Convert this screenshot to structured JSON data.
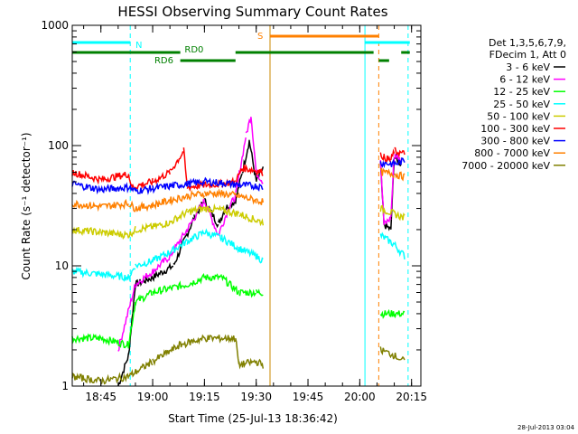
{
  "chart_data": {
    "type": "line",
    "title": "HESSI Observing Summary Count Rates",
    "xlabel": "Start Time (25-Jul-13 18:36:42)",
    "ylabel": "Count Rate (s⁻¹ detector⁻¹)",
    "yscale": "log",
    "ylim": [
      1,
      1000
    ],
    "xlim": [
      "18:36:42",
      "20:17:42"
    ],
    "x_ticks": [
      "18:45",
      "19:00",
      "19:15",
      "19:30",
      "19:45",
      "20:00",
      "20:15"
    ],
    "y_ticks": [
      "1",
      "10",
      "100",
      "1000"
    ],
    "legend_header": [
      "Det 1,3,5,6,7,9,",
      "FDecim 1, Att 0"
    ],
    "legend_position": "right",
    "timestamp": "28-Jul-2013 03:04",
    "attenuator_bars": [
      {
        "label": "N",
        "color": "#00ffff",
        "segments": [
          [
            "18:36:42",
            "18:53:30"
          ],
          [
            "20:01:30",
            "20:14:30"
          ]
        ]
      },
      {
        "label": "S",
        "color": "#ff8000",
        "segments": [
          [
            "19:34:00",
            "20:05:30"
          ]
        ]
      },
      {
        "label": "RD0",
        "color": "#008000",
        "segments": [
          [
            "18:36:42",
            "19:08:00"
          ],
          [
            "19:24:00",
            "20:04:00"
          ],
          [
            "20:12:00",
            "20:14:30"
          ]
        ]
      },
      {
        "label": "RD6",
        "color": "#008000",
        "segments": [
          [
            "19:08:00",
            "19:24:00"
          ],
          [
            "20:05:30",
            "20:08:30"
          ]
        ]
      }
    ],
    "vlines": [
      {
        "time": "18:36:42",
        "color": "#00ffff",
        "dashed": false
      },
      {
        "time": "18:53:30",
        "color": "#00ffff",
        "dashed": true
      },
      {
        "time": "19:34:00",
        "color": "#cc8800",
        "dashed": false
      },
      {
        "time": "20:01:30",
        "color": "#00ffff",
        "dashed": false
      },
      {
        "time": "20:05:30",
        "color": "#ff8000",
        "dashed": true
      },
      {
        "time": "20:14:00",
        "color": "#00ffff",
        "dashed": true
      }
    ],
    "series": [
      {
        "name": "3 - 6 keV",
        "color": "#000000",
        "points": [
          [
            "18:50:00",
            1
          ],
          [
            "18:53:00",
            1.8
          ],
          [
            "18:55:00",
            7
          ],
          [
            "19:00:00",
            8
          ],
          [
            "19:06:00",
            10
          ],
          [
            "19:12:00",
            25
          ],
          [
            "19:15:00",
            35
          ],
          [
            "19:19:00",
            22
          ],
          [
            "19:21:00",
            30
          ],
          [
            "19:24:00",
            35
          ],
          [
            "19:26:00",
            60
          ],
          [
            "19:28:00",
            110
          ],
          [
            "19:30:00",
            50
          ],
          [
            "19:32:00",
            65
          ],
          [
            "20:06:00",
            70
          ],
          [
            "20:07:00",
            22
          ],
          [
            "20:09:00",
            20
          ],
          [
            "20:10:00",
            80
          ],
          [
            "20:12:00",
            70
          ]
        ]
      },
      {
        "name": "6 - 12 keV",
        "color": "#ff00ff",
        "points": [
          [
            "18:50:00",
            2
          ],
          [
            "18:55:00",
            7
          ],
          [
            "19:00:00",
            9
          ],
          [
            "19:05:00",
            12
          ],
          [
            "19:10:00",
            20
          ],
          [
            "19:15:00",
            35
          ],
          [
            "19:19:00",
            18
          ],
          [
            "19:22:00",
            30
          ],
          [
            "19:24:00",
            38
          ],
          [
            "19:27:00",
            120
          ],
          [
            "19:28:30",
            180
          ],
          [
            "19:30:00",
            60
          ],
          [
            "19:32:00",
            50
          ],
          [
            "20:06:00",
            80
          ],
          [
            "20:07:00",
            22
          ],
          [
            "20:09:00",
            25
          ],
          [
            "20:10:00",
            85
          ],
          [
            "20:12:00",
            75
          ]
        ]
      },
      {
        "name": "12 - 25 keV",
        "color": "#00ff00",
        "points": [
          [
            "18:36:42",
            2.5
          ],
          [
            "18:45:00",
            2.5
          ],
          [
            "18:53:00",
            2.2
          ],
          [
            "18:55:00",
            5
          ],
          [
            "19:00:00",
            6
          ],
          [
            "19:10:00",
            7
          ],
          [
            "19:15:00",
            8
          ],
          [
            "19:20:00",
            8
          ],
          [
            "19:25:00",
            6
          ],
          [
            "19:30:00",
            6
          ],
          [
            "19:32:00",
            6
          ],
          [
            "20:06:00",
            4
          ],
          [
            "20:10:00",
            4
          ],
          [
            "20:13:00",
            4
          ]
        ]
      },
      {
        "name": "25 - 50 keV",
        "color": "#00ffff",
        "points": [
          [
            "18:36:42",
            9
          ],
          [
            "18:45:00",
            8.5
          ],
          [
            "18:53:00",
            8
          ],
          [
            "18:55:00",
            10
          ],
          [
            "19:00:00",
            11
          ],
          [
            "19:05:00",
            13
          ],
          [
            "19:10:00",
            16
          ],
          [
            "19:15:00",
            19
          ],
          [
            "19:20:00",
            17
          ],
          [
            "19:25:00",
            14
          ],
          [
            "19:30:00",
            12
          ],
          [
            "19:32:00",
            11
          ],
          [
            "20:06:00",
            18
          ],
          [
            "20:10:00",
            15
          ],
          [
            "20:13:00",
            12
          ]
        ]
      },
      {
        "name": "50 - 100 keV",
        "color": "#cccc00",
        "points": [
          [
            "18:36:42",
            20
          ],
          [
            "18:45:00",
            19
          ],
          [
            "18:53:00",
            18
          ],
          [
            "18:55:00",
            20
          ],
          [
            "19:00:00",
            21
          ],
          [
            "19:05:00",
            23
          ],
          [
            "19:10:00",
            28
          ],
          [
            "19:15:00",
            30
          ],
          [
            "19:20:00",
            29
          ],
          [
            "19:25:00",
            27
          ],
          [
            "19:30:00",
            24
          ],
          [
            "19:32:00",
            23
          ],
          [
            "20:06:00",
            30
          ],
          [
            "20:10:00",
            27
          ],
          [
            "20:13:00",
            25
          ]
        ]
      },
      {
        "name": "100 - 300 keV",
        "color": "#ff0000",
        "points": [
          [
            "18:36:42",
            60
          ],
          [
            "18:45:00",
            52
          ],
          [
            "18:53:00",
            58
          ],
          [
            "18:54:00",
            45
          ],
          [
            "19:00:00",
            50
          ],
          [
            "19:05:00",
            60
          ],
          [
            "19:09:00",
            90
          ],
          [
            "19:10:00",
            45
          ],
          [
            "19:15:00",
            47
          ],
          [
            "19:20:00",
            48
          ],
          [
            "19:24:00",
            50
          ],
          [
            "19:26:00",
            65
          ],
          [
            "19:30:00",
            62
          ],
          [
            "19:32:00",
            60
          ],
          [
            "20:06:00",
            85
          ],
          [
            "20:07:00",
            80
          ],
          [
            "20:09:00",
            75
          ],
          [
            "20:10:00",
            90
          ],
          [
            "20:13:00",
            85
          ]
        ]
      },
      {
        "name": "300 - 800 keV",
        "color": "#0000ff",
        "points": [
          [
            "18:36:42",
            48
          ],
          [
            "18:45:00",
            43
          ],
          [
            "18:53:00",
            45
          ],
          [
            "18:55:00",
            42
          ],
          [
            "19:00:00",
            44
          ],
          [
            "19:05:00",
            46
          ],
          [
            "19:10:00",
            48
          ],
          [
            "19:15:00",
            50
          ],
          [
            "19:20:00",
            49
          ],
          [
            "19:25:00",
            47
          ],
          [
            "19:30:00",
            46
          ],
          [
            "19:32:00",
            45
          ],
          [
            "20:06:00",
            72
          ],
          [
            "20:10:00",
            70
          ],
          [
            "20:13:00",
            75
          ]
        ]
      },
      {
        "name": "800 - 7000 keV",
        "color": "#ff8000",
        "points": [
          [
            "18:36:42",
            33
          ],
          [
            "18:45:00",
            31
          ],
          [
            "18:53:00",
            33
          ],
          [
            "18:55:00",
            30
          ],
          [
            "19:00:00",
            32
          ],
          [
            "19:05:00",
            35
          ],
          [
            "19:10:00",
            38
          ],
          [
            "19:15:00",
            40
          ],
          [
            "19:20:00",
            40
          ],
          [
            "19:25:00",
            38
          ],
          [
            "19:30:00",
            35
          ],
          [
            "19:32:00",
            34
          ],
          [
            "20:06:00",
            60
          ],
          [
            "20:10:00",
            58
          ],
          [
            "20:13:00",
            55
          ]
        ]
      },
      {
        "name": "7000 - 20000 keV",
        "color": "#808000",
        "points": [
          [
            "18:36:42",
            1.2
          ],
          [
            "18:45:00",
            1.1
          ],
          [
            "18:53:00",
            1.2
          ],
          [
            "19:00:00",
            1.6
          ],
          [
            "19:08:00",
            2.2
          ],
          [
            "19:15:00",
            2.5
          ],
          [
            "19:24:00",
            2.5
          ],
          [
            "19:25:00",
            1.5
          ],
          [
            "19:30:00",
            1.6
          ],
          [
            "19:32:00",
            1.5
          ],
          [
            "20:06:00",
            2
          ],
          [
            "20:10:00",
            1.8
          ],
          [
            "20:13:00",
            1.6
          ]
        ]
      }
    ]
  }
}
